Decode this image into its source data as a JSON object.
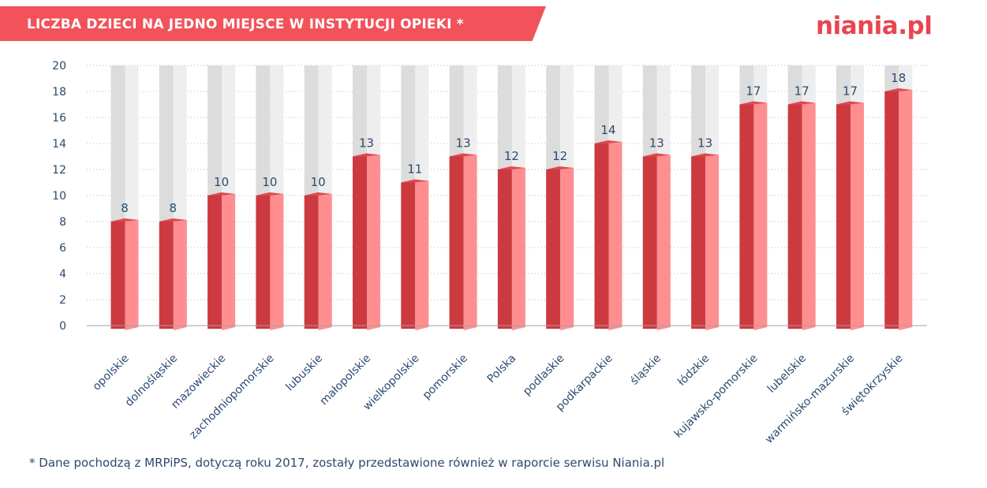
{
  "header": {
    "title": "LICZBA DZIECI NA JEDNO MIEJSCE W INSTYTUCJI OPIEKI *",
    "logo": "niania.pl"
  },
  "footnote": "* Dane pochodzą z MRPiPS, dotyczą roku 2017, zostały przedstawione również w raporcie serwisu Niania.pl",
  "colors": {
    "banner": "#f2525a",
    "bar_front": "#cc3a40",
    "bar_side": "#ff8e90",
    "bar_top": "#e0484e",
    "track_front": "#dcdcdc",
    "track_side": "#eeeeee",
    "axis_text": "#2c4a6e",
    "grid": "#b8b8b8"
  },
  "chart_data": {
    "type": "bar",
    "title": "LICZBA DZIECI NA JEDNO MIEJSCE W INSTYTUCJI OPIEKI *",
    "xlabel": "",
    "ylabel": "",
    "ylim": [
      0,
      20
    ],
    "yticks": [
      0,
      2,
      4,
      6,
      8,
      10,
      12,
      14,
      16,
      18,
      20
    ],
    "grid": true,
    "categories": [
      "opolskie",
      "dolnośląskie",
      "mazowieckie",
      "zachodniopomorskie",
      "lubuskie",
      "małopolskie",
      "wielkopolskie",
      "pomorskie",
      "Polska",
      "podlaskie",
      "podkarpackie",
      "śląskie",
      "łódzkie",
      "kujawsko-pomorskie",
      "lubelskie",
      "warmińsko-mazurskie",
      "świętokrzyskie"
    ],
    "values": [
      8,
      8,
      10,
      10,
      10,
      13,
      11,
      13,
      12,
      12,
      14,
      13,
      13,
      17,
      17,
      17,
      18
    ],
    "value_labels": [
      "8",
      "8",
      "10",
      "10",
      "10",
      "13",
      "11",
      "13",
      "12",
      "12",
      "14",
      "13",
      "13",
      "17",
      "17",
      "17",
      "18"
    ]
  }
}
